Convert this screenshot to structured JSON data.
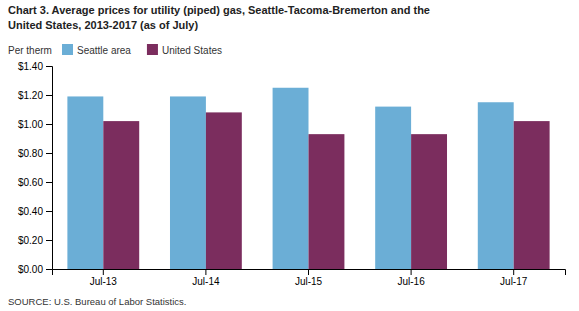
{
  "chart_data": {
    "type": "bar",
    "title": [
      "Chart 3. Average prices for utility (piped) gas, Seattle-Tacoma-Bremerton and the",
      "United States, 2013-2017  (as of July)"
    ],
    "y_label": "Per therm",
    "annotations": [
      "SOURCE: U.S. Bureau of Labor Statistics."
    ],
    "categories": [
      "Jul-13",
      "Jul-14",
      "Jul-15",
      "Jul-16",
      "Jul-17"
    ],
    "series": [
      {
        "name": "Seattle area",
        "color": "#6baed6",
        "values": [
          1.19,
          1.19,
          1.25,
          1.12,
          1.15
        ]
      },
      {
        "name": "United States",
        "color": "#7B2D5E",
        "values": [
          1.02,
          1.08,
          0.93,
          0.93,
          1.02
        ]
      }
    ],
    "ylim": [
      0,
      1.4
    ],
    "yticks": [
      {
        "value": 0.0,
        "label": "$0.00"
      },
      {
        "value": 0.2,
        "label": "$0.20"
      },
      {
        "value": 0.4,
        "label": "$0.40"
      },
      {
        "value": 0.6,
        "label": "$0.60"
      },
      {
        "value": 0.8,
        "label": "$0.80"
      },
      {
        "value": 1.0,
        "label": "$1.00"
      },
      {
        "value": 1.2,
        "label": "$1.20"
      },
      {
        "value": 1.4,
        "label": "$1.40"
      }
    ],
    "grid": false,
    "legend": "upper left"
  }
}
